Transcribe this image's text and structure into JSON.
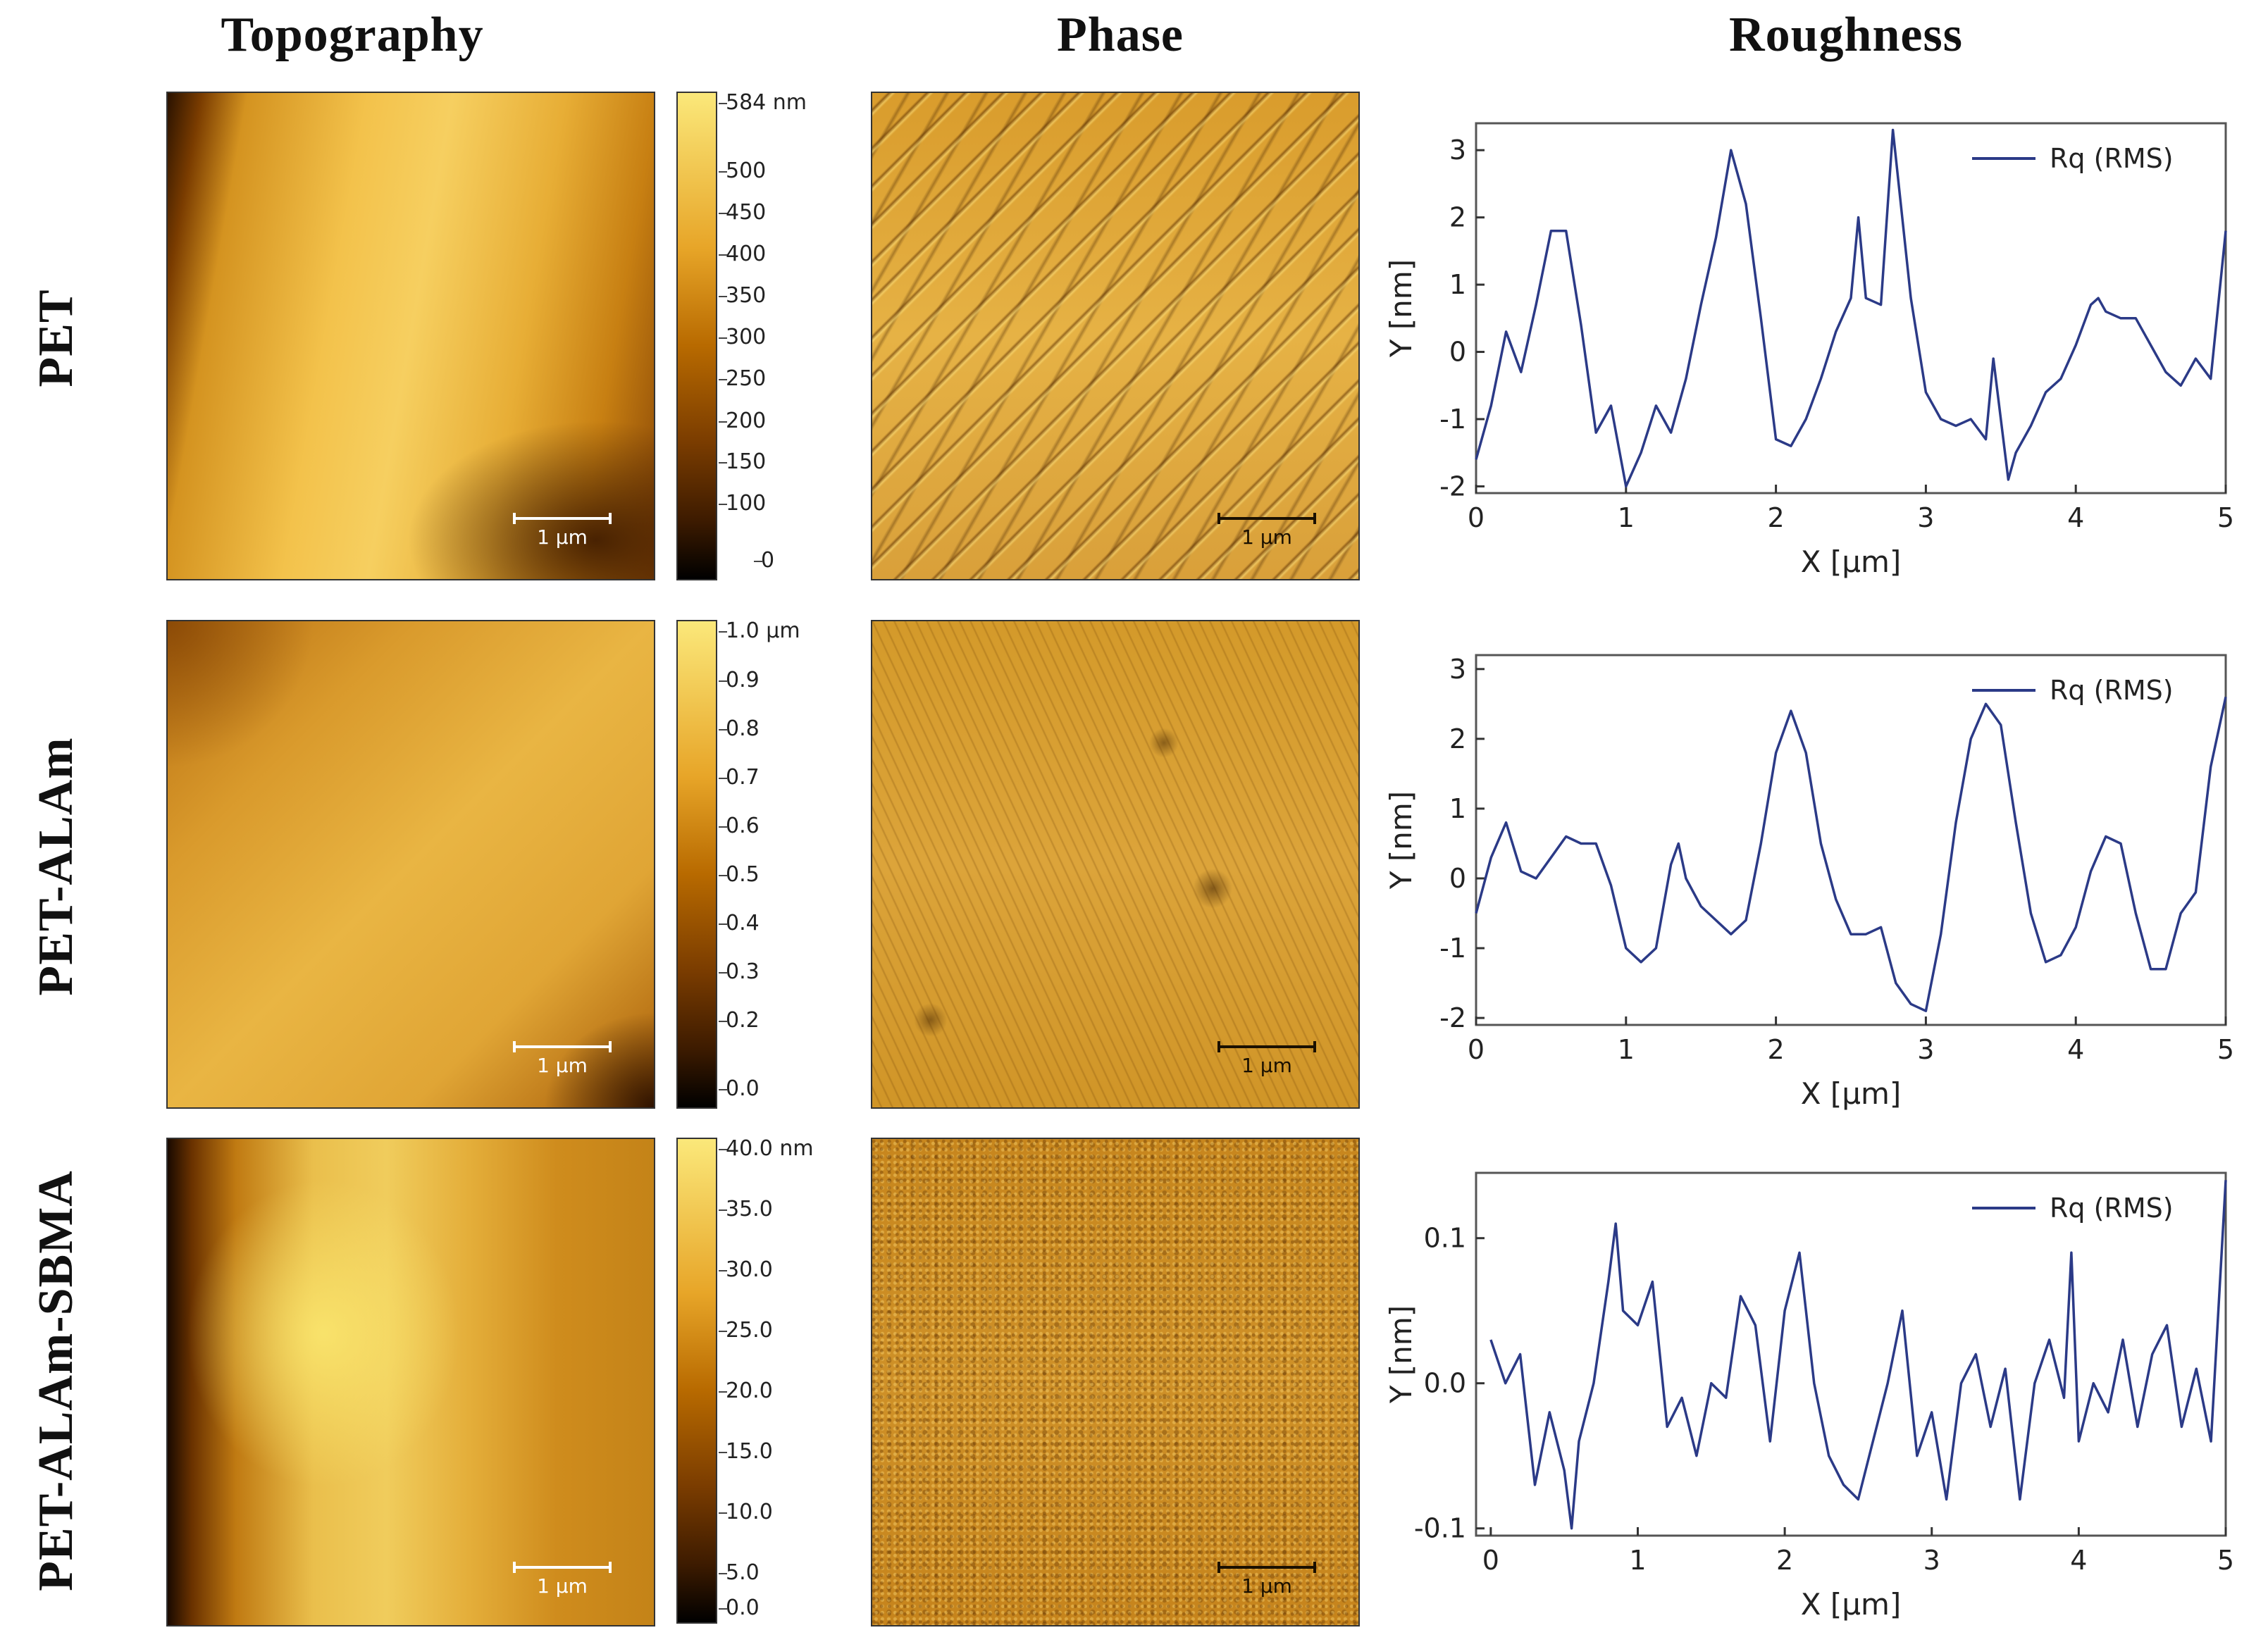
{
  "column_titles": [
    "Topography",
    "Phase",
    "Roughness"
  ],
  "rows": [
    {
      "label": "PET",
      "topography": {
        "colorbar_ticks": [
          "584 nm",
          "500",
          "450",
          "400",
          "350",
          "300",
          "250",
          "200",
          "150",
          "100",
          "0"
        ],
        "scale_bar": "1 μm"
      },
      "phase": {
        "scale_bar": "1 μm"
      }
    },
    {
      "label": "PET-ALAm",
      "topography": {
        "colorbar_ticks": [
          "1.0 μm",
          "0.9",
          "0.8",
          "0.7",
          "0.6",
          "0.5",
          "0.4",
          "0.3",
          "0.2",
          "0.0"
        ],
        "scale_bar": "1 μm"
      },
      "phase": {
        "scale_bar": "1 μm"
      }
    },
    {
      "label": "PET-ALAm-SBMA",
      "topography": {
        "colorbar_ticks": [
          "40.0 nm",
          "35.0",
          "30.0",
          "25.0",
          "20.0",
          "15.0",
          "10.0",
          "5.0",
          "0.0"
        ],
        "scale_bar": "1 μm"
      },
      "phase": {
        "scale_bar": "1 μm"
      }
    }
  ],
  "colors": {
    "afm_dark": "#000000",
    "afm_mid": "#b86a00",
    "afm_light": "#fbe87a",
    "line": "#2b3a87"
  },
  "chart_data": [
    {
      "type": "line",
      "xlabel": "X [μm]",
      "ylabel": "Y [nm]",
      "xlim": [
        0,
        5
      ],
      "ylim": [
        -2.1,
        3.4
      ],
      "xticks": [
        0,
        1,
        2,
        3,
        4,
        5
      ],
      "yticks": [
        -2,
        -1,
        0,
        1,
        2,
        3
      ],
      "ytick_labels": [
        "-2",
        "-1",
        "0",
        "1",
        "2",
        "3"
      ],
      "legend": "Rq (RMS)",
      "series": [
        {
          "name": "Rq (RMS)",
          "x": [
            0,
            0.1,
            0.2,
            0.3,
            0.4,
            0.5,
            0.6,
            0.7,
            0.8,
            0.9,
            1.0,
            1.1,
            1.2,
            1.3,
            1.4,
            1.5,
            1.6,
            1.7,
            1.8,
            1.9,
            2.0,
            2.1,
            2.2,
            2.3,
            2.4,
            2.5,
            2.55,
            2.6,
            2.7,
            2.78,
            2.9,
            3.0,
            3.1,
            3.2,
            3.3,
            3.4,
            3.45,
            3.55,
            3.6,
            3.7,
            3.8,
            3.9,
            4.0,
            4.1,
            4.15,
            4.2,
            4.3,
            4.4,
            4.5,
            4.6,
            4.7,
            4.8,
            4.9,
            5.0
          ],
          "y": [
            -1.6,
            -0.8,
            0.3,
            -0.3,
            0.7,
            1.8,
            1.8,
            0.4,
            -1.2,
            -0.8,
            -2.0,
            -1.5,
            -0.8,
            -1.2,
            -0.4,
            0.7,
            1.7,
            3.0,
            2.2,
            0.5,
            -1.3,
            -1.4,
            -1.0,
            -0.4,
            0.3,
            0.8,
            2.0,
            0.8,
            0.7,
            3.3,
            0.8,
            -0.6,
            -1.0,
            -1.1,
            -1.0,
            -1.3,
            -0.1,
            -1.9,
            -1.5,
            -1.1,
            -0.6,
            -0.4,
            0.1,
            0.7,
            0.8,
            0.6,
            0.5,
            0.5,
            0.1,
            -0.3,
            -0.5,
            -0.1,
            -0.4,
            1.8
          ]
        }
      ]
    },
    {
      "type": "line",
      "xlabel": "X [μm]",
      "ylabel": "Y [nm]",
      "xlim": [
        0,
        5
      ],
      "ylim": [
        -2.1,
        3.2
      ],
      "xticks": [
        0,
        1,
        2,
        3,
        4,
        5
      ],
      "yticks": [
        -2,
        -1,
        0,
        1,
        2,
        3
      ],
      "ytick_labels": [
        "-2",
        "-1",
        "0",
        "1",
        "2",
        "3"
      ],
      "legend": "Rq (RMS)",
      "series": [
        {
          "name": "Rq (RMS)",
          "x": [
            0,
            0.1,
            0.2,
            0.3,
            0.4,
            0.5,
            0.6,
            0.7,
            0.8,
            0.9,
            1.0,
            1.1,
            1.2,
            1.3,
            1.35,
            1.4,
            1.5,
            1.6,
            1.7,
            1.8,
            1.9,
            2.0,
            2.1,
            2.2,
            2.3,
            2.4,
            2.5,
            2.6,
            2.7,
            2.8,
            2.9,
            3.0,
            3.1,
            3.2,
            3.3,
            3.4,
            3.5,
            3.6,
            3.7,
            3.8,
            3.9,
            4.0,
            4.1,
            4.2,
            4.3,
            4.4,
            4.5,
            4.6,
            4.7,
            4.8,
            4.9,
            5.0
          ],
          "y": [
            -0.5,
            0.3,
            0.8,
            0.1,
            0.0,
            0.3,
            0.6,
            0.5,
            0.5,
            -0.1,
            -1.0,
            -1.2,
            -1.0,
            0.2,
            0.5,
            0.0,
            -0.4,
            -0.6,
            -0.8,
            -0.6,
            0.5,
            1.8,
            2.4,
            1.8,
            0.5,
            -0.3,
            -0.8,
            -0.8,
            -0.7,
            -1.5,
            -1.8,
            -1.9,
            -0.8,
            0.8,
            2.0,
            2.5,
            2.2,
            0.8,
            -0.5,
            -1.2,
            -1.1,
            -0.7,
            0.1,
            0.6,
            0.5,
            -0.5,
            -1.3,
            -1.3,
            -0.5,
            -0.2,
            1.6,
            2.6
          ]
        }
      ]
    },
    {
      "type": "line",
      "xlabel": "X [μm]",
      "ylabel": "Y [nm]",
      "xlim": [
        -0.1,
        5
      ],
      "ylim": [
        -0.105,
        0.145
      ],
      "xticks": [
        0,
        1,
        2,
        3,
        4,
        5
      ],
      "yticks": [
        -0.1,
        0.0,
        0.1
      ],
      "ytick_labels": [
        "-0.1",
        "0.0",
        "0.1"
      ],
      "legend": "Rq (RMS)",
      "series": [
        {
          "name": "Rq (RMS)",
          "x": [
            0,
            0.1,
            0.2,
            0.3,
            0.4,
            0.5,
            0.55,
            0.6,
            0.7,
            0.8,
            0.85,
            0.9,
            1.0,
            1.1,
            1.2,
            1.3,
            1.4,
            1.5,
            1.6,
            1.7,
            1.8,
            1.9,
            2.0,
            2.1,
            2.2,
            2.3,
            2.4,
            2.5,
            2.6,
            2.7,
            2.8,
            2.9,
            3.0,
            3.1,
            3.2,
            3.3,
            3.4,
            3.5,
            3.6,
            3.7,
            3.8,
            3.9,
            3.95,
            4.0,
            4.1,
            4.2,
            4.3,
            4.4,
            4.5,
            4.6,
            4.7,
            4.8,
            4.9,
            5.0
          ],
          "y": [
            0.03,
            0.0,
            0.02,
            -0.07,
            -0.02,
            -0.06,
            -0.1,
            -0.04,
            0.0,
            0.07,
            0.11,
            0.05,
            0.04,
            0.07,
            -0.03,
            -0.01,
            -0.05,
            0.0,
            -0.01,
            0.06,
            0.04,
            -0.04,
            0.05,
            0.09,
            0.0,
            -0.05,
            -0.07,
            -0.08,
            -0.04,
            0.0,
            0.05,
            -0.05,
            -0.02,
            -0.08,
            0.0,
            0.02,
            -0.03,
            0.01,
            -0.08,
            0.0,
            0.03,
            -0.01,
            0.09,
            -0.04,
            0.0,
            -0.02,
            0.03,
            -0.03,
            0.02,
            0.04,
            -0.03,
            0.01,
            -0.04,
            0.14
          ]
        }
      ]
    }
  ]
}
